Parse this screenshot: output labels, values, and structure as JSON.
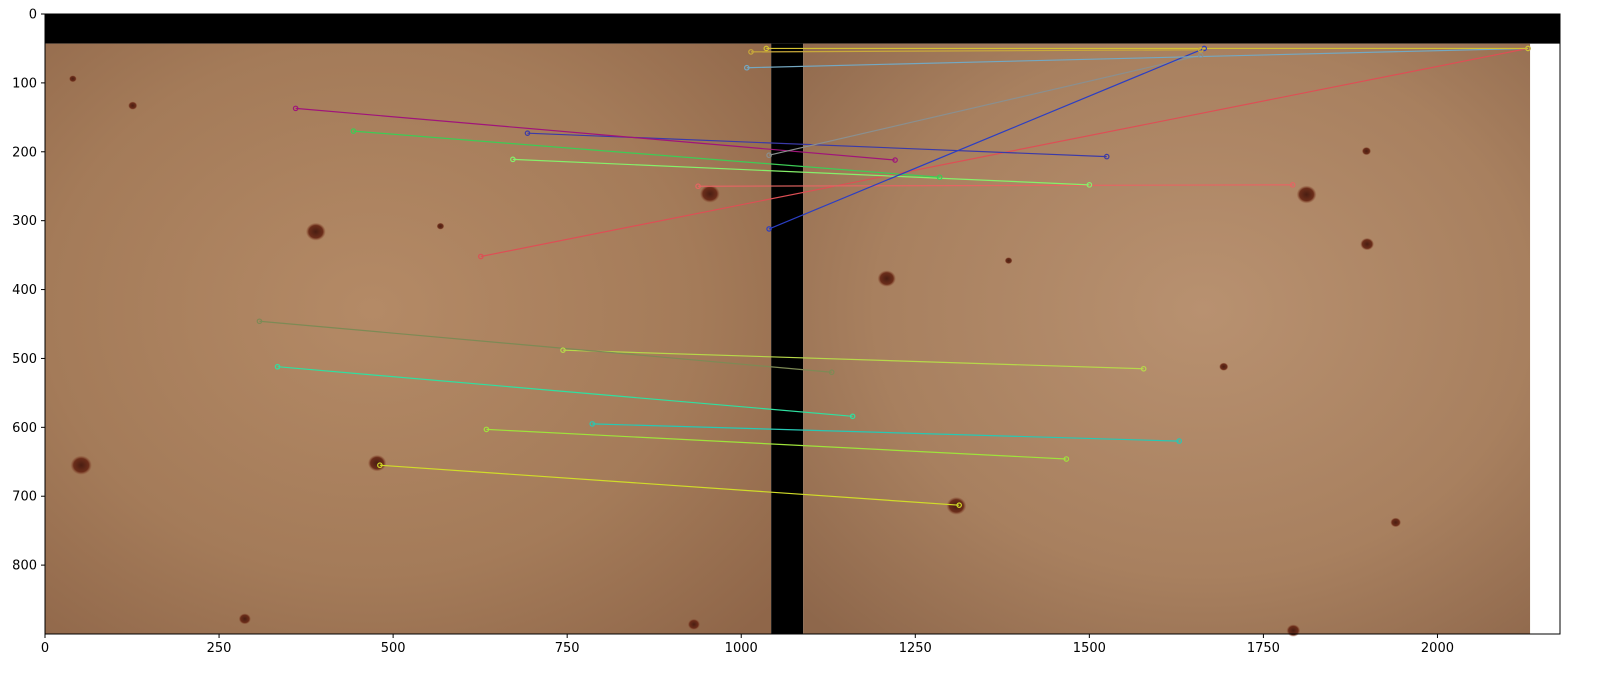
{
  "chart_data": {
    "type": "scatter",
    "title": "",
    "xlabel": "",
    "ylabel": "",
    "xlim": [
      0,
      2176
    ],
    "ylim": [
      900,
      0
    ],
    "y_inverted": true,
    "grid": false,
    "x_ticks": [
      0,
      250,
      500,
      750,
      1000,
      1250,
      1500,
      1750,
      2000
    ],
    "y_ticks": [
      0,
      100,
      200,
      300,
      400,
      500,
      600,
      700,
      800
    ],
    "image_extent": {
      "top_blank_to": 43,
      "left_image": [
        0,
        1043
      ],
      "gap": [
        1043,
        1089
      ],
      "right_image": [
        1089,
        2133
      ],
      "image_bottom": 900
    },
    "skin_spots": [
      {
        "x": 52,
        "y": 655,
        "r": 14
      },
      {
        "x": 477,
        "y": 652,
        "r": 12
      },
      {
        "x": 389,
        "y": 316,
        "r": 13
      },
      {
        "x": 955,
        "y": 261,
        "r": 13
      },
      {
        "x": 126,
        "y": 133,
        "r": 6
      },
      {
        "x": 40,
        "y": 94,
        "r": 5
      },
      {
        "x": 568,
        "y": 308,
        "r": 5
      },
      {
        "x": 1812,
        "y": 262,
        "r": 13
      },
      {
        "x": 1309,
        "y": 714,
        "r": 13
      },
      {
        "x": 1209,
        "y": 384,
        "r": 12
      },
      {
        "x": 1899,
        "y": 334,
        "r": 9
      },
      {
        "x": 1384,
        "y": 358,
        "r": 5
      },
      {
        "x": 1793,
        "y": 895,
        "r": 9
      },
      {
        "x": 287,
        "y": 878,
        "r": 8
      },
      {
        "x": 932,
        "y": 886,
        "r": 8
      },
      {
        "x": 1693,
        "y": 512,
        "r": 6
      },
      {
        "x": 1898,
        "y": 199,
        "r": 6
      },
      {
        "x": 1940,
        "y": 738,
        "r": 7
      }
    ],
    "series": [
      {
        "color": "#d1dc29",
        "x": [
          481,
          1313
        ],
        "y": [
          655,
          713
        ]
      },
      {
        "color": "#9fe33b",
        "x": [
          634,
          1467
        ],
        "y": [
          603,
          646
        ]
      },
      {
        "color": "#26c9b4",
        "x": [
          786,
          1629
        ],
        "y": [
          595,
          620
        ]
      },
      {
        "color": "#2fe0a0",
        "x": [
          334,
          1160
        ],
        "y": [
          512,
          584
        ]
      },
      {
        "color": "#b7d84a",
        "x": [
          744,
          1578
        ],
        "y": [
          488,
          515
        ]
      },
      {
        "color": "#7d8a55",
        "x": [
          308,
          1130
        ],
        "y": [
          446,
          520
        ]
      },
      {
        "color": "#dd4f55",
        "x": [
          626,
          2130
        ],
        "y": [
          352,
          50
        ]
      },
      {
        "color": "#e56563",
        "x": [
          938,
          1792
        ],
        "y": [
          250,
          248
        ]
      },
      {
        "color": "#86f06a",
        "x": [
          672,
          1500
        ],
        "y": [
          211,
          248
        ]
      },
      {
        "color": "#3dcc55",
        "x": [
          443,
          1285
        ],
        "y": [
          170,
          237
        ]
      },
      {
        "color": "#3b3aa8",
        "x": [
          693,
          1525
        ],
        "y": [
          173,
          207
        ]
      },
      {
        "color": "#a0147a",
        "x": [
          360,
          1221
        ],
        "y": [
          137,
          212
        ]
      },
      {
        "color": "#8a8f8f",
        "x": [
          1040,
          1660
        ],
        "y": [
          205,
          60
        ]
      },
      {
        "color": "#2b3ec4",
        "x": [
          1040,
          1665
        ],
        "y": [
          312,
          50
        ]
      },
      {
        "color": "#74a8c2",
        "x": [
          1008,
          2130
        ],
        "y": [
          78,
          50
        ]
      },
      {
        "color": "#d4c231",
        "x": [
          1036,
          2130
        ],
        "y": [
          50,
          50
        ]
      },
      {
        "color": "#c9a93a",
        "x": [
          1014,
          1660
        ],
        "y": [
          55,
          52
        ]
      }
    ]
  }
}
